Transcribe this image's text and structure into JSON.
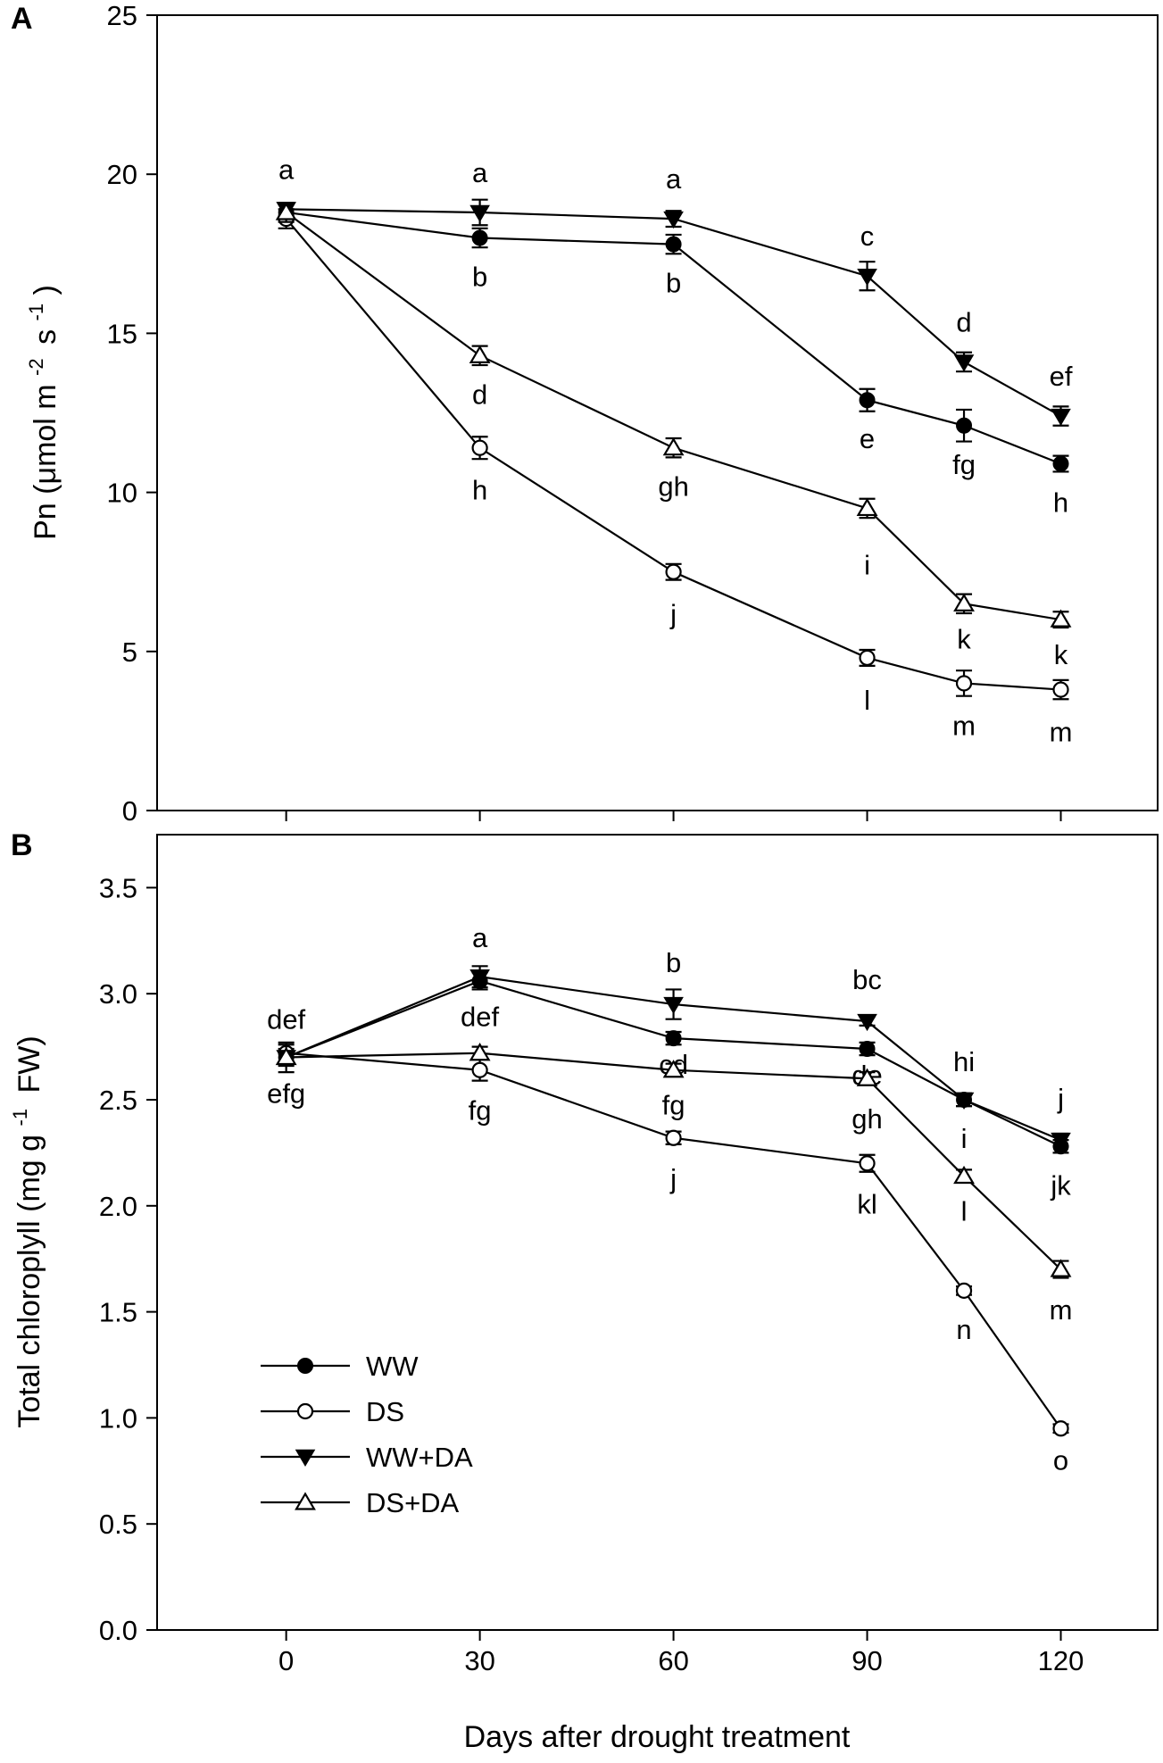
{
  "chart_data": [
    {
      "panel": "A",
      "type": "line",
      "ylabel": "Pn (μmol m",
      "ylabel_sup1": "-2",
      "ylabel_mid": "s",
      "ylabel_sup2": "-1",
      "ylabel_end": ")",
      "ylim": [
        0,
        25
      ],
      "yticks": [
        "0",
        "5",
        "10",
        "15",
        "20",
        "25"
      ],
      "ytick_values": [
        0,
        5,
        10,
        15,
        20,
        25
      ],
      "xlim": [
        -20,
        135
      ],
      "series": [
        {
          "name": "WW",
          "marker": "circle-filled",
          "x": [
            0,
            30,
            60,
            90,
            105,
            120
          ],
          "y": [
            18.8,
            18.0,
            17.8,
            12.9,
            12.1,
            10.9
          ],
          "err": [
            0.25,
            0.3,
            0.3,
            0.35,
            0.5,
            0.25
          ],
          "letters": [
            "",
            "b",
            "b",
            "e",
            "fg",
            "h"
          ]
        },
        {
          "name": "DS",
          "marker": "circle-open",
          "x": [
            0,
            30,
            60,
            90,
            105,
            120
          ],
          "y": [
            18.6,
            11.4,
            7.5,
            4.8,
            4.0,
            3.8
          ],
          "err": [
            0.3,
            0.35,
            0.25,
            0.25,
            0.4,
            0.3
          ],
          "letters": [
            "",
            "h",
            "j",
            "l",
            "m",
            "m"
          ]
        },
        {
          "name": "WW+DA",
          "marker": "triangle-down-filled",
          "x": [
            0,
            30,
            60,
            90,
            105,
            120
          ],
          "y": [
            18.9,
            18.8,
            18.6,
            16.8,
            14.1,
            12.4
          ],
          "err": [
            0.2,
            0.4,
            0.25,
            0.45,
            0.3,
            0.3
          ],
          "letters": [
            "a",
            "a",
            "a",
            "c",
            "d",
            "ef"
          ]
        },
        {
          "name": "DS+DA",
          "marker": "triangle-up-open",
          "x": [
            0,
            30,
            60,
            90,
            105,
            120
          ],
          "y": [
            18.8,
            14.3,
            11.4,
            9.5,
            6.5,
            6.0
          ],
          "err": [
            0.3,
            0.3,
            0.3,
            0.3,
            0.3,
            0.25
          ],
          "letters": [
            "",
            "d",
            "gh",
            "i",
            "k",
            "k"
          ]
        }
      ]
    },
    {
      "panel": "B",
      "type": "line",
      "ylabel": "Total chloroplyll (mg g",
      "ylabel_sup1": "-1",
      "ylabel_end": "FW)",
      "xlabel": "Days after drought treatment",
      "ylim": [
        0.0,
        3.75
      ],
      "yticks": [
        "0.0",
        "0.5",
        "1.0",
        "1.5",
        "2.0",
        "2.5",
        "3.0",
        "3.5"
      ],
      "ytick_values": [
        0.0,
        0.5,
        1.0,
        1.5,
        2.0,
        2.5,
        3.0,
        3.5
      ],
      "xticks": [
        "0",
        "30",
        "60",
        "90",
        "120"
      ],
      "xtick_values": [
        0,
        30,
        60,
        90,
        120
      ],
      "xlim": [
        -20,
        135
      ],
      "series": [
        {
          "name": "WW",
          "marker": "circle-filled",
          "x": [
            0,
            30,
            60,
            90,
            105,
            120
          ],
          "y": [
            2.7,
            3.06,
            2.79,
            2.74,
            2.5,
            2.28
          ],
          "err": [
            0.04,
            0.04,
            0.03,
            0.03,
            0.03,
            0.03
          ],
          "letters": [
            "def",
            "a",
            "cd",
            "de",
            "hi",
            "jk"
          ]
        },
        {
          "name": "DS",
          "marker": "circle-open",
          "x": [
            0,
            30,
            60,
            90,
            105,
            120
          ],
          "y": [
            2.72,
            2.64,
            2.32,
            2.2,
            1.6,
            0.95
          ],
          "err": [
            0.04,
            0.05,
            0.03,
            0.04,
            0.02,
            0.02
          ],
          "letters": [
            "efg",
            "fg",
            "j",
            "kl",
            "n",
            "o"
          ]
        },
        {
          "name": "WW+DA",
          "marker": "triangle-down-filled",
          "x": [
            0,
            30,
            60,
            90,
            105,
            120
          ],
          "y": [
            2.7,
            3.08,
            2.95,
            2.87,
            2.5,
            2.31
          ],
          "err": [
            0.07,
            0.05,
            0.07,
            0.02,
            0.03,
            0.03
          ],
          "letters": [
            "",
            "",
            "b",
            "bc",
            "i",
            "j"
          ]
        },
        {
          "name": "DS+DA",
          "marker": "triangle-up-open",
          "x": [
            0,
            30,
            60,
            90,
            105,
            120
          ],
          "y": [
            2.7,
            2.72,
            2.64,
            2.6,
            2.14,
            1.7
          ],
          "err": [
            0.03,
            0.03,
            0.03,
            0.03,
            0.03,
            0.04
          ],
          "letters": [
            "",
            "def",
            "fg",
            "gh",
            "l",
            "m"
          ]
        }
      ]
    }
  ],
  "legend": {
    "items": [
      {
        "name": "WW",
        "marker": "circle-filled"
      },
      {
        "name": "DS",
        "marker": "circle-open"
      },
      {
        "name": "WW+DA",
        "marker": "triangle-down-filled"
      },
      {
        "name": "DS+DA",
        "marker": "triangle-up-open"
      }
    ]
  }
}
